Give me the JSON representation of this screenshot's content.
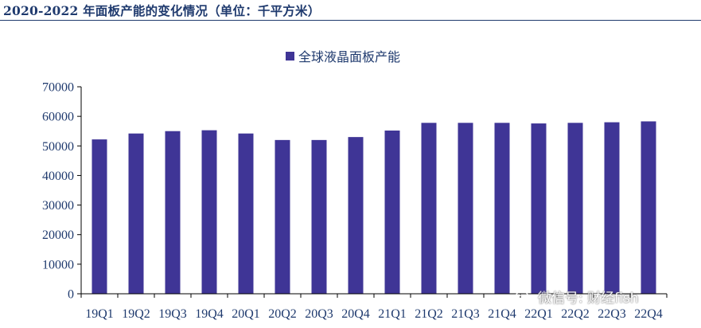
{
  "header": {
    "title": "2020-2022 年面板产能的变化情况（单位：千平方米）"
  },
  "watermark": {
    "icon": "wechat-icon",
    "text": "微信号: 财经fish"
  },
  "colors": {
    "bar": "#3f3596",
    "text": "#1f3a6e",
    "axis": "#000000"
  },
  "chart_data": {
    "type": "bar",
    "title": "",
    "xlabel": "",
    "ylabel": "",
    "ylim": [
      0,
      70000
    ],
    "yticks": [
      0,
      10000,
      20000,
      30000,
      40000,
      50000,
      60000,
      70000
    ],
    "grid": false,
    "legend_position": "top-center",
    "categories": [
      "19Q1",
      "19Q2",
      "19Q3",
      "19Q4",
      "20Q1",
      "20Q2",
      "20Q3",
      "20Q4",
      "21Q1",
      "21Q2",
      "21Q3",
      "21Q4",
      "22Q1",
      "22Q2",
      "22Q3",
      "22Q4"
    ],
    "series": [
      {
        "name": "全球液晶面板产能",
        "values": [
          52200,
          54200,
          55000,
          55300,
          54200,
          52000,
          52000,
          53000,
          55200,
          57800,
          57800,
          57800,
          57600,
          57800,
          58000,
          58300
        ]
      }
    ]
  }
}
